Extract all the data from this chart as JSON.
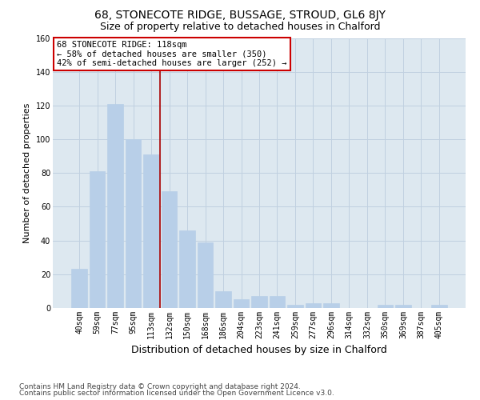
{
  "title": "68, STONECOTE RIDGE, BUSSAGE, STROUD, GL6 8JY",
  "subtitle": "Size of property relative to detached houses in Chalford",
  "xlabel": "Distribution of detached houses by size in Chalford",
  "ylabel": "Number of detached properties",
  "categories": [
    "40sqm",
    "59sqm",
    "77sqm",
    "95sqm",
    "113sqm",
    "132sqm",
    "150sqm",
    "168sqm",
    "186sqm",
    "204sqm",
    "223sqm",
    "241sqm",
    "259sqm",
    "277sqm",
    "296sqm",
    "314sqm",
    "332sqm",
    "350sqm",
    "369sqm",
    "387sqm",
    "405sqm"
  ],
  "values": [
    23,
    81,
    121,
    100,
    91,
    69,
    46,
    39,
    10,
    5,
    7,
    7,
    2,
    3,
    3,
    0,
    0,
    2,
    2,
    0,
    2
  ],
  "bar_color": "#b8cfe8",
  "bar_edge_color": "#b8cfe8",
  "vline_color": "#aa0000",
  "annotation_text": "68 STONECOTE RIDGE: 118sqm\n← 58% of detached houses are smaller (350)\n42% of semi-detached houses are larger (252) →",
  "annotation_box_color": "#ffffff",
  "annotation_box_edge": "#cc0000",
  "ylim": [
    0,
    160
  ],
  "yticks": [
    0,
    20,
    40,
    60,
    80,
    100,
    120,
    140,
    160
  ],
  "grid_color": "#c0d0e0",
  "bg_color": "#dde8f0",
  "fig_bg_color": "#ffffff",
  "footer_line1": "Contains HM Land Registry data © Crown copyright and database right 2024.",
  "footer_line2": "Contains public sector information licensed under the Open Government Licence v3.0.",
  "title_fontsize": 10,
  "subtitle_fontsize": 9,
  "xlabel_fontsize": 9,
  "ylabel_fontsize": 8,
  "tick_fontsize": 7,
  "annotation_fontsize": 7.5,
  "footer_fontsize": 6.5
}
